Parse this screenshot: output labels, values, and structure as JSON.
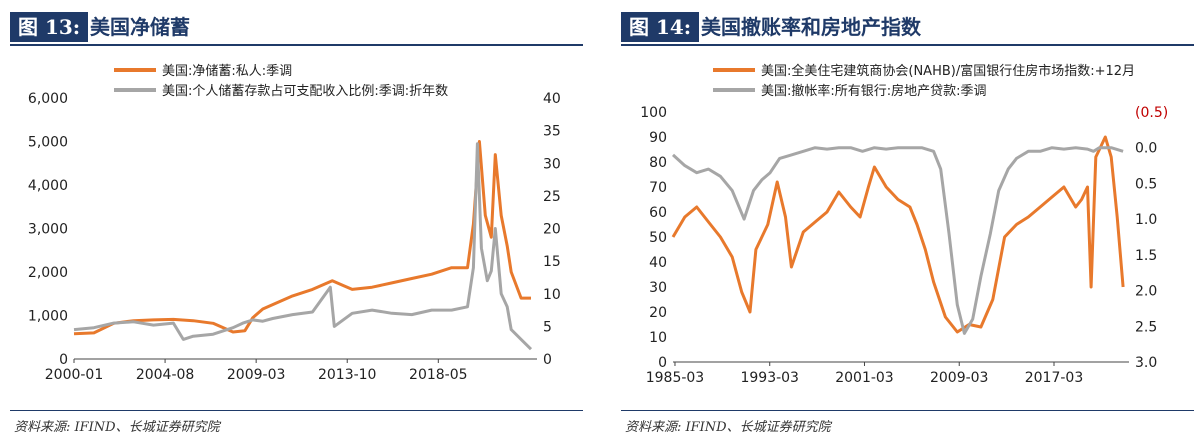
{
  "colors": {
    "title_bg": "#1f3a68",
    "series_orange": "#e8792c",
    "series_gray": "#a6a6a6",
    "right_axis_red": "#c00000"
  },
  "left_panel": {
    "figure_label": "图 13:",
    "title": "美国净储蓄",
    "source": "资料来源: IFIND、长城证券研究院",
    "chart_data": {
      "type": "line",
      "title": "美国净储蓄",
      "legend_position": "top-left",
      "x_ticks": [
        "2000-01",
        "2004-08",
        "2009-03",
        "2013-10",
        "2018-05"
      ],
      "x_range": [
        2000.0,
        2023.3
      ],
      "y_left_ticks": [
        "6,000",
        "5,000",
        "4,000",
        "3,000",
        "2,000",
        "1,000",
        "0"
      ],
      "y_left_range": [
        0,
        6000
      ],
      "y_right_ticks": [
        "40",
        "35",
        "30",
        "25",
        "20",
        "15",
        "10",
        "5",
        "0"
      ],
      "y_right_range": [
        0,
        40
      ],
      "grid": false,
      "series": [
        {
          "name": "美国:净储蓄:私人:季调",
          "axis": "left",
          "color": "#e8792c",
          "x": [
            2000.0,
            2001.0,
            2002.0,
            2003.0,
            2004.0,
            2005.0,
            2006.0,
            2007.0,
            2008.0,
            2008.6,
            2009.0,
            2009.5,
            2010.0,
            2011.0,
            2012.0,
            2013.0,
            2013.5,
            2014.0,
            2015.0,
            2016.0,
            2017.0,
            2018.0,
            2019.0,
            2019.8,
            2020.1,
            2020.4,
            2020.7,
            2021.0,
            2021.2,
            2021.5,
            2021.8,
            2022.0,
            2022.5,
            2023.0
          ],
          "y": [
            580,
            600,
            820,
            880,
            900,
            910,
            880,
            820,
            620,
            650,
            950,
            1150,
            1250,
            1450,
            1600,
            1800,
            1700,
            1600,
            1650,
            1750,
            1850,
            1950,
            2100,
            2100,
            3100,
            5000,
            3300,
            2800,
            4700,
            3300,
            2600,
            2000,
            1400,
            1400
          ]
        },
        {
          "name": "美国:个人储蓄存款占可支配收入比例:季调:折年数",
          "axis": "right",
          "color": "#a6a6a6",
          "x": [
            2000.0,
            2001.0,
            2002.0,
            2003.0,
            2004.0,
            2005.0,
            2005.5,
            2006.0,
            2007.0,
            2008.0,
            2008.5,
            2009.0,
            2009.5,
            2010.0,
            2011.0,
            2012.0,
            2012.9,
            2013.1,
            2014.0,
            2015.0,
            2016.0,
            2017.0,
            2018.0,
            2019.0,
            2019.8,
            2020.1,
            2020.3,
            2020.5,
            2020.8,
            2021.0,
            2021.2,
            2021.5,
            2021.8,
            2022.0,
            2022.5,
            2023.0
          ],
          "y": [
            4.5,
            4.8,
            5.5,
            5.7,
            5.2,
            5.5,
            3.0,
            3.5,
            3.8,
            4.8,
            5.5,
            6.0,
            5.8,
            6.2,
            6.8,
            7.2,
            11.0,
            5.0,
            7.0,
            7.5,
            7.0,
            6.8,
            7.5,
            7.5,
            8.0,
            14.0,
            33.0,
            17.0,
            12.0,
            13.5,
            20.0,
            10.0,
            8.0,
            4.5,
            3.0,
            1.5
          ]
        }
      ]
    }
  },
  "right_panel": {
    "figure_label": "图 14:",
    "title": "美国撤账率和房地产指数",
    "source": "资料来源: IFIND、长城证券研究院",
    "chart_data": {
      "type": "line",
      "title": "美国撤账率和房地产指数",
      "legend_position": "top-left",
      "x_ticks": [
        "1985-03",
        "1993-03",
        "2001-03",
        "2009-03",
        "2017-03"
      ],
      "x_range": [
        1985.0,
        2023.5
      ],
      "y_left_ticks": [
        "100",
        "90",
        "80",
        "70",
        "60",
        "50",
        "40",
        "30",
        "20",
        "10",
        "0"
      ],
      "y_left_range": [
        0,
        100
      ],
      "y_right_ticks": [
        "(0.5)",
        "0.0",
        "0.5",
        "1.0",
        "1.5",
        "2.0",
        "2.5",
        "3.0"
      ],
      "y_right_range": [
        -0.5,
        3.0
      ],
      "y_right_inverted": true,
      "grid": false,
      "series": [
        {
          "name": "美国:全美住宅建筑商协会(NAHB)/富国银行住房市场指数:+12月",
          "axis": "left",
          "color": "#e8792c",
          "x": [
            1985.0,
            1986.0,
            1987.0,
            1988.0,
            1989.0,
            1990.0,
            1990.8,
            1991.5,
            1992.0,
            1993.0,
            1993.8,
            1994.5,
            1995.0,
            1996.0,
            1997.0,
            1998.0,
            1999.0,
            2000.0,
            2000.8,
            2001.5,
            2002.0,
            2003.0,
            2004.0,
            2005.0,
            2005.6,
            2006.3,
            2007.0,
            2008.0,
            2009.0,
            2010.0,
            2011.0,
            2012.0,
            2013.0,
            2014.0,
            2015.0,
            2016.0,
            2017.0,
            2018.0,
            2019.0,
            2019.5,
            2020.0,
            2020.3,
            2020.7,
            2021.0,
            2021.5,
            2022.0,
            2022.5,
            2023.0
          ],
          "y": [
            50,
            58,
            62,
            56,
            50,
            42,
            28,
            20,
            45,
            55,
            72,
            58,
            38,
            52,
            56,
            60,
            68,
            62,
            58,
            70,
            78,
            70,
            65,
            62,
            55,
            45,
            32,
            18,
            12,
            15,
            14,
            25,
            50,
            55,
            58,
            62,
            66,
            70,
            62,
            65,
            70,
            30,
            82,
            85,
            90,
            82,
            58,
            30
          ]
        },
        {
          "name": "美国:撤帐率:所有银行:房地产贷款:季调",
          "axis": "right",
          "color": "#a6a6a6",
          "x": [
            1985.0,
            1986.0,
            1987.0,
            1988.0,
            1989.0,
            1990.0,
            1991.0,
            1991.8,
            1992.5,
            1993.2,
            1994.0,
            1995.0,
            1996.0,
            1997.0,
            1998.0,
            1999.0,
            2000.0,
            2001.0,
            2002.0,
            2003.0,
            2004.0,
            2005.0,
            2006.0,
            2007.0,
            2007.6,
            2008.3,
            2009.0,
            2009.6,
            2010.3,
            2011.0,
            2011.8,
            2012.5,
            2013.3,
            2014.0,
            2015.0,
            2016.0,
            2017.0,
            2018.0,
            2019.0,
            2020.0,
            2020.5,
            2021.0,
            2022.0,
            2023.0
          ],
          "y": [
            0.1,
            0.25,
            0.35,
            0.3,
            0.4,
            0.6,
            1.0,
            0.6,
            0.45,
            0.35,
            0.15,
            0.1,
            0.05,
            0.0,
            0.02,
            0.0,
            0.0,
            0.05,
            0.0,
            0.02,
            0.0,
            0.0,
            0.0,
            0.05,
            0.3,
            1.2,
            2.2,
            2.6,
            2.4,
            1.8,
            1.2,
            0.6,
            0.3,
            0.15,
            0.05,
            0.05,
            0.0,
            0.02,
            0.0,
            0.02,
            0.05,
            0.0,
            0.0,
            0.05
          ]
        }
      ]
    }
  }
}
